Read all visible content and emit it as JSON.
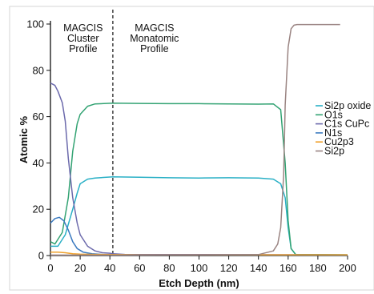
{
  "chart_data": {
    "type": "line",
    "title": "",
    "xlabel": "Etch Depth (nm)",
    "ylabel": "Atomic %",
    "xlim": [
      0,
      200
    ],
    "ylim": [
      0,
      100
    ],
    "xticks": [
      0,
      20,
      40,
      60,
      80,
      100,
      120,
      140,
      160,
      180,
      200
    ],
    "yticks": [
      0,
      20,
      40,
      60,
      80,
      100
    ],
    "grid": false,
    "legend_position": "right",
    "regions": [
      {
        "label": [
          "MAGCIS",
          "Cluster",
          "Profile"
        ],
        "x_center": 22
      },
      {
        "label": [
          "MAGCIS",
          "Monatomic",
          "Profile"
        ],
        "x_center": 70
      }
    ],
    "divider_x": 42,
    "series": [
      {
        "name": "Si2p oxide",
        "color": "#2ab0c6",
        "x": [
          0,
          5,
          10,
          15,
          18,
          20,
          25,
          30,
          42,
          60,
          80,
          100,
          120,
          140,
          150,
          155,
          158,
          160,
          162,
          165,
          200
        ],
        "y": [
          4,
          4,
          9,
          20,
          27,
          31,
          33,
          33.5,
          34,
          33.8,
          33.6,
          33.5,
          33.6,
          33.5,
          33,
          31,
          25,
          12,
          3,
          0.5,
          0.3
        ]
      },
      {
        "name": "O1s",
        "color": "#33a373",
        "x": [
          0,
          3,
          8,
          12,
          15,
          18,
          20,
          25,
          30,
          42,
          60,
          80,
          100,
          120,
          140,
          150,
          155,
          158,
          160,
          162,
          165,
          200
        ],
        "y": [
          6,
          5,
          10,
          25,
          45,
          57,
          61,
          64.5,
          65.5,
          65.8,
          65.7,
          65.6,
          65.6,
          65.5,
          65.4,
          65.5,
          63,
          40,
          15,
          3,
          0.5,
          0.3
        ]
      },
      {
        "name": "C1s CuPc",
        "color": "#6c6aac",
        "x": [
          0,
          3,
          5,
          8,
          10,
          12,
          15,
          18,
          20,
          25,
          30,
          35,
          40,
          42,
          50,
          200
        ],
        "y": [
          74.5,
          73.5,
          71,
          66,
          58,
          42,
          25,
          14,
          9,
          4,
          2,
          1.2,
          1,
          0.8,
          0.5,
          0.3
        ]
      },
      {
        "name": "N1s",
        "color": "#3c7bc0",
        "x": [
          0,
          3,
          6,
          9,
          12,
          15,
          18,
          22,
          28,
          35,
          42,
          200
        ],
        "y": [
          14,
          16,
          16.5,
          15,
          11,
          6,
          3,
          1.5,
          0.8,
          0.5,
          0.3,
          0.2
        ]
      },
      {
        "name": "Cu2p3",
        "color": "#f0a12b",
        "x": [
          0,
          5,
          10,
          15,
          20,
          30,
          42,
          60,
          100,
          150,
          200
        ],
        "y": [
          1.5,
          1.5,
          1.2,
          0.8,
          0.6,
          0.5,
          0.4,
          0.3,
          0.3,
          0.3,
          0.3
        ]
      },
      {
        "name": "Si2p",
        "color": "#9a8482",
        "x": [
          0,
          50,
          100,
          140,
          150,
          153,
          155,
          157,
          158,
          160,
          162,
          164,
          166,
          175,
          195
        ],
        "y": [
          0.2,
          0.2,
          0.3,
          0.4,
          2,
          5,
          12,
          35,
          65,
          90,
          98,
          99.5,
          99.8,
          99.8,
          99.8
        ]
      }
    ]
  }
}
